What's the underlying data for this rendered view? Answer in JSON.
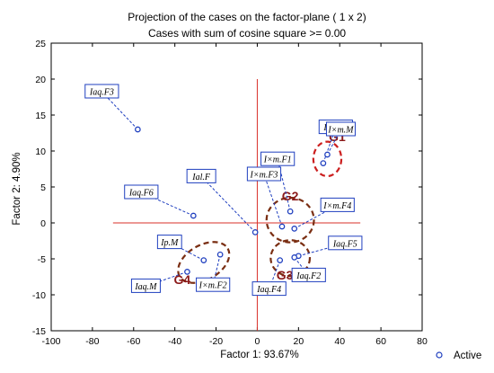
{
  "chart_data": {
    "type": "scatter",
    "title": "Projection of the cases on the factor-plane (  1 x    2)",
    "subtitle": "Cases with sum of cosine square >=   0.00",
    "xlabel": "Factor 1: 93.67%",
    "ylabel": "Factor 2:  4.90%",
    "xlim": [
      -100,
      80
    ],
    "ylim": [
      -15,
      25
    ],
    "xticks": [
      -100,
      -80,
      -60,
      -40,
      -20,
      0,
      20,
      40,
      60,
      80
    ],
    "yticks": [
      -15,
      -10,
      -5,
      0,
      5,
      10,
      15,
      20,
      25
    ],
    "xtick_labels": [
      "-100",
      "-80",
      "-60",
      "-40",
      "-20",
      "0",
      "20",
      "40",
      "60",
      "80"
    ],
    "ytick_labels": [
      "-15",
      "-10",
      "-5",
      "0",
      "5",
      "10",
      "15",
      "20",
      "25"
    ],
    "grid": false,
    "legend_position": "bottom-right",
    "series": [
      {
        "name": "Active",
        "color": "#1f3fbf",
        "points": [
          {
            "label": "Iaq.F3",
            "x": -58,
            "y": 13
          },
          {
            "label": "Iaq.F1",
            "x": 32,
            "y": 8.3
          },
          {
            "label": "I×m.M",
            "x": 34,
            "y": 9.5
          },
          {
            "label": "Ial.F",
            "x": -1,
            "y": -1.3
          },
          {
            "label": "I×m.F3",
            "x": 12,
            "y": -0.5
          },
          {
            "label": "I×m.F1",
            "x": 16,
            "y": 1.6
          },
          {
            "label": "Iaq.F6",
            "x": -31,
            "y": 1
          },
          {
            "label": "I×m.F4",
            "x": 18,
            "y": -0.8
          },
          {
            "label": "Ip.M",
            "x": -26,
            "y": -5.2
          },
          {
            "label": "Iaq.F5",
            "x": 20,
            "y": -4.6
          },
          {
            "label": "Iaq.M",
            "x": -34,
            "y": -6.8
          },
          {
            "label": "I×m.F2",
            "x": -18,
            "y": -4.4
          },
          {
            "label": "Iaq.F2",
            "x": 18,
            "y": -4.8
          },
          {
            "label": "Iaq.F4",
            "x": 11,
            "y": -5.2
          }
        ]
      }
    ],
    "reference_lines": {
      "vertical_x": 0,
      "vertical_y_range": [
        -15,
        20
      ],
      "horizontal_y": 0,
      "horizontal_x_range": [
        -70,
        50
      ],
      "color": "#d9302a"
    },
    "groups": [
      {
        "label": "G1",
        "ellipse": {
          "cx": 34,
          "cy": 8.9,
          "rx": 6.8,
          "ry": 2.4
        }
      },
      {
        "label": "G2",
        "ellipse": {
          "cx": 16,
          "cy": 0.4,
          "rx": 11.5,
          "ry": 3.1
        }
      },
      {
        "label": "G3",
        "ellipse": {
          "cx": 16,
          "cy": -4.9,
          "rx": 9.5,
          "ry": 2.5
        }
      },
      {
        "label": "G4",
        "ellipse": {
          "cx": -26,
          "cy": -5.5,
          "rx": 13.5,
          "ry": 2.4,
          "angle": -30
        }
      }
    ]
  }
}
